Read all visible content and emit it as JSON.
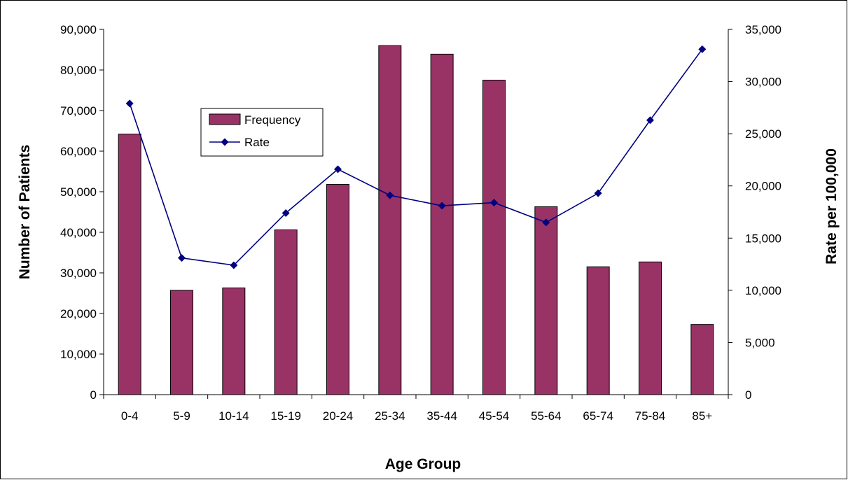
{
  "chart_data": {
    "type": "bar",
    "title": "",
    "xlabel": "Age Group",
    "ylabel": "Number of Patients",
    "y2label": "Rate per 100,000",
    "categories": [
      "0-4",
      "5-9",
      "10-14",
      "15-19",
      "20-24",
      "25-34",
      "35-44",
      "45-54",
      "55-64",
      "65-74",
      "75-84",
      "85+"
    ],
    "ylim": [
      0,
      90000
    ],
    "y2lim": [
      0,
      35000
    ],
    "yticks": [
      "0",
      "10,000",
      "20,000",
      "30,000",
      "40,000",
      "50,000",
      "60,000",
      "70,000",
      "80,000",
      "90,000"
    ],
    "y2ticks": [
      "0",
      "5,000",
      "10,000",
      "15,000",
      "20,000",
      "25,000",
      "30,000",
      "35,000"
    ],
    "grid": false,
    "legend_position": "upper-left-inside",
    "series": [
      {
        "name": "Frequency",
        "type": "bar",
        "axis": "left",
        "color": "#993366",
        "values": [
          64200,
          25700,
          26300,
          40600,
          51800,
          86000,
          83900,
          77500,
          46300,
          31500,
          32700,
          17300
        ]
      },
      {
        "name": "Rate",
        "type": "line",
        "axis": "right",
        "color": "#000080",
        "values": [
          27900,
          13100,
          12400,
          17400,
          21600,
          19100,
          18100,
          18400,
          16500,
          19300,
          26300,
          33100
        ]
      }
    ]
  }
}
